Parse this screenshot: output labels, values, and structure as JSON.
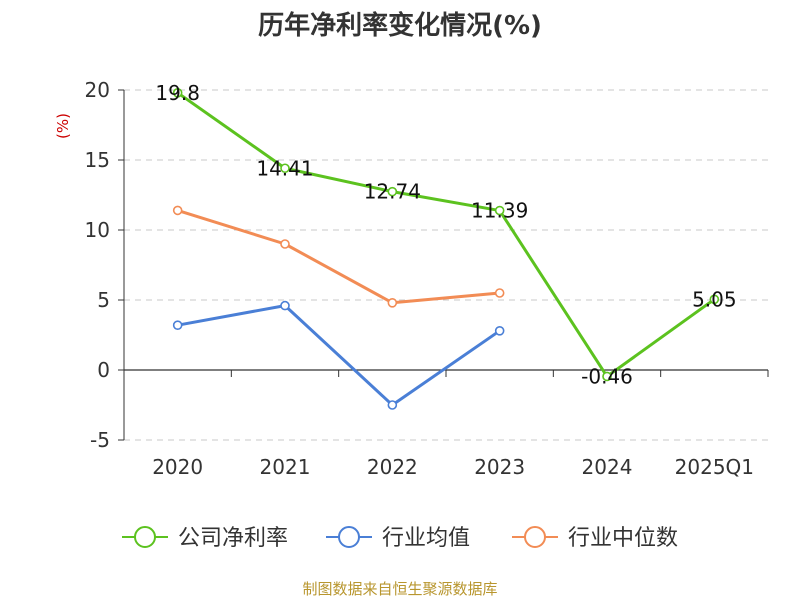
{
  "chart_data": {
    "type": "line",
    "title": "历年净利率变化情况(%)",
    "ylabel": "(%)",
    "xlabel": "",
    "categories": [
      "2020",
      "2021",
      "2022",
      "2023",
      "2024",
      "2025Q1"
    ],
    "ylim": [
      -5,
      20
    ],
    "yticks": [
      20,
      15,
      10,
      5,
      0,
      -5
    ],
    "grid": true,
    "legend_position": "bottom",
    "series": [
      {
        "name": "公司净利率",
        "color": "#5cc21f",
        "values": [
          19.8,
          14.41,
          12.74,
          11.39,
          -0.46,
          5.05
        ],
        "labels": [
          "19.8",
          "14.41",
          "12.74",
          "11.39",
          "-0.46",
          "5.05"
        ]
      },
      {
        "name": "行业均值",
        "color": "#4a7fd6",
        "values": [
          3.2,
          4.6,
          -2.5,
          2.8,
          null,
          null
        ]
      },
      {
        "name": "行业中位数",
        "color": "#f28c55",
        "values": [
          11.4,
          9.0,
          4.8,
          5.5,
          null,
          null
        ]
      }
    ]
  },
  "source": "制图数据来自恒生聚源数据库"
}
